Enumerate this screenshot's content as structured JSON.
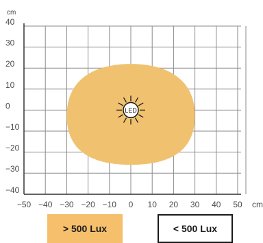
{
  "diagram": {
    "y_unit": "cm",
    "x_unit": "cm",
    "y_ticks": [
      "40",
      "30",
      "20",
      "10",
      "0",
      "−10",
      "−20",
      "−30",
      "−40"
    ],
    "x_ticks": [
      "−50",
      "−40",
      "−30",
      "−20",
      "−10",
      "0",
      "10",
      "20",
      "30",
      "40",
      "50"
    ],
    "led_label": "LED",
    "illuminated_area": {
      "x_range_cm": [
        -30,
        30
      ],
      "y_range_cm": [
        -26,
        22
      ],
      "color": "#f0c270"
    },
    "grid_color": "#8a8a8a",
    "axis_color": "#333333"
  },
  "legend": {
    "above_label": "> 500 Lux",
    "above_color": "#f5bf6c",
    "below_label": "< 500 Lux"
  }
}
